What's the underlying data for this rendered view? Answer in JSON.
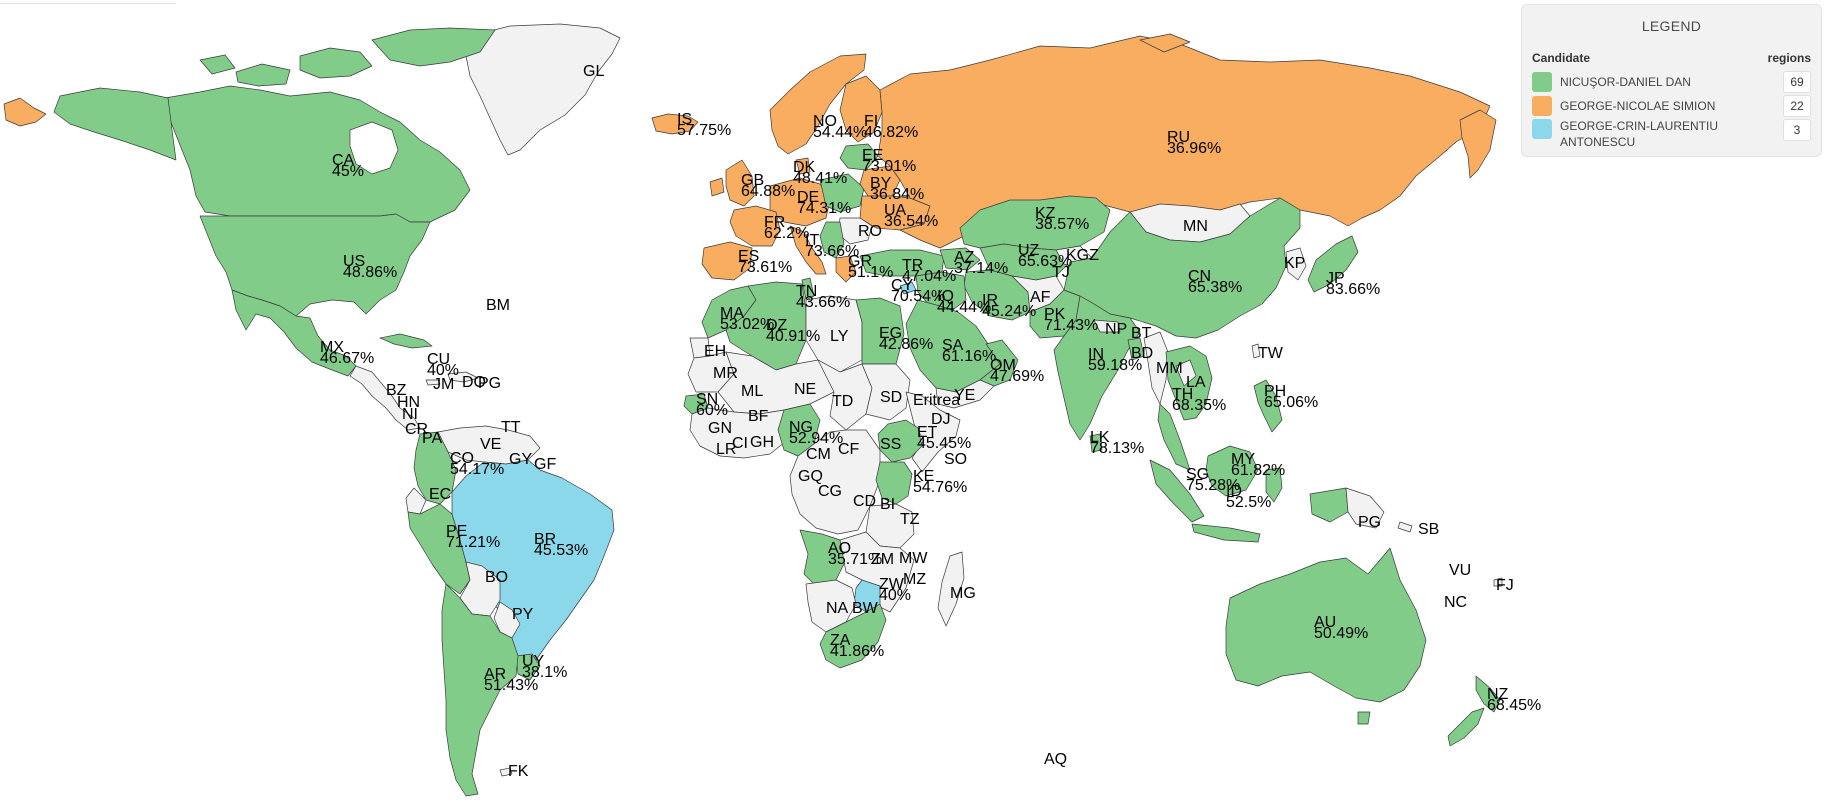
{
  "legend": {
    "title": "LEGEND",
    "col_candidate": "Candidate",
    "col_regions": "regions",
    "entries": [
      {
        "candidate": "NICUŞOR-DANIEL DAN",
        "regions": "69",
        "color": "#82cc8a"
      },
      {
        "candidate": "GEORGE-NICOLAE SIMION",
        "regions": "22",
        "color": "#f8ad60"
      },
      {
        "candidate": "GEORGE-CRIN-LAURENTIU\nANTONESCU",
        "regions": "3",
        "color": "#8ad8ea"
      }
    ]
  },
  "colors": {
    "none": "#f2f2f2",
    "border": "#3a3a3a",
    "text": "#222222"
  },
  "labels": {
    "GL": {
      "code": "GL"
    },
    "IS": {
      "code": "IS",
      "pct": "57.75%"
    },
    "CA": {
      "code": "CA",
      "pct": "45%"
    },
    "US": {
      "code": "US",
      "pct": "48.86%"
    },
    "MX": {
      "code": "MX",
      "pct": "46.67%"
    },
    "BM": {
      "code": "BM"
    },
    "CU": {
      "code": "CU",
      "pct": "40%"
    },
    "BZ": {
      "code": "BZ"
    },
    "JM": {
      "code": "JM"
    },
    "DO": {
      "code": "DO"
    },
    "PG_pr": {
      "code": "PG"
    },
    "HN": {
      "code": "HN"
    },
    "NI": {
      "code": "NI"
    },
    "CR": {
      "code": "CR"
    },
    "PA": {
      "code": "PA"
    },
    "TT": {
      "code": "TT"
    },
    "VE": {
      "code": "VE"
    },
    "GY": {
      "code": "GY"
    },
    "GF": {
      "code": "GF"
    },
    "CO": {
      "code": "CO",
      "pct": "54.17%"
    },
    "EC": {
      "code": "EC"
    },
    "PE": {
      "code": "PE",
      "pct": "71.21%"
    },
    "BR": {
      "code": "BR",
      "pct": "45.53%"
    },
    "BO": {
      "code": "BO"
    },
    "PY": {
      "code": "PY"
    },
    "UY": {
      "code": "UY",
      "pct": "38.1%"
    },
    "AR": {
      "code": "AR",
      "pct": "51.43%"
    },
    "FK": {
      "code": "FK"
    },
    "NO": {
      "code": "NO",
      "pct": "54.44%"
    },
    "FI": {
      "code": "FI",
      "pct": "46.82%"
    },
    "EE": {
      "code": "EE",
      "pct": "73.01%"
    },
    "DK": {
      "code": "DK",
      "pct": "48.41%"
    },
    "GB": {
      "code": "GB",
      "pct": "64.88%"
    },
    "DE": {
      "code": "DE",
      "pct": "74.31%"
    },
    "BY": {
      "code": "BY",
      "pct": "36.84%"
    },
    "UA": {
      "code": "UA",
      "pct": "36.54%"
    },
    "FR": {
      "code": "FR",
      "pct": "62.2%"
    },
    "IT": {
      "code": "IT",
      "pct": "73.66%"
    },
    "RO": {
      "code": "RO"
    },
    "ES": {
      "code": "ES",
      "pct": "73.61%"
    },
    "GR": {
      "code": "GR",
      "pct": "51.1%"
    },
    "TR": {
      "code": "TR",
      "pct": "47.04%"
    },
    "CY": {
      "code": "CY",
      "pct": "70.54%"
    },
    "AZ": {
      "code": "AZ",
      "pct": "37.14%"
    },
    "RU": {
      "code": "RU",
      "pct": "36.96%"
    },
    "KZ": {
      "code": "KZ",
      "pct": "38.57%"
    },
    "MN": {
      "code": "MN"
    },
    "UZ": {
      "code": "UZ",
      "pct": "65.63%"
    },
    "KGZ": {
      "code": "KGZ"
    },
    "TJ": {
      "code": "TJ"
    },
    "IQ": {
      "code": "IQ",
      "pct": "44.44%"
    },
    "IR": {
      "code": "IR",
      "pct": "45.24%"
    },
    "AF": {
      "code": "AF"
    },
    "PK": {
      "code": "PK",
      "pct": "71.43%"
    },
    "CN": {
      "code": "CN",
      "pct": "65.38%"
    },
    "KP": {
      "code": "KP"
    },
    "JP": {
      "code": "JP",
      "pct": "83.66%"
    },
    "NP": {
      "code": "NP"
    },
    "BT": {
      "code": "BT"
    },
    "BD": {
      "code": "BD"
    },
    "IN": {
      "code": "IN",
      "pct": "59.18%"
    },
    "TW": {
      "code": "TW"
    },
    "MM": {
      "code": "MM"
    },
    "LA": {
      "code": "LA"
    },
    "TH": {
      "code": "TH",
      "pct": "68.35%"
    },
    "PH": {
      "code": "PH",
      "pct": "65.06%"
    },
    "LK": {
      "code": "LK",
      "pct": "78.13%"
    },
    "SG": {
      "code": "SG",
      "pct": "75.28%"
    },
    "MY": {
      "code": "MY",
      "pct": "61.82%"
    },
    "ID": {
      "code": "ID",
      "pct": "52.5%"
    },
    "PG": {
      "code": "PG"
    },
    "SB": {
      "code": "SB"
    },
    "VU": {
      "code": "VU"
    },
    "FJ": {
      "code": "FJ"
    },
    "NC": {
      "code": "NC"
    },
    "AU": {
      "code": "AU",
      "pct": "50.49%"
    },
    "NZ": {
      "code": "NZ",
      "pct": "68.45%"
    },
    "AQ": {
      "code": "AQ"
    },
    "SA": {
      "code": "SA",
      "pct": "61.16%"
    },
    "OM": {
      "code": "OM",
      "pct": "47.69%"
    },
    "YE": {
      "code": "YE"
    },
    "MA": {
      "code": "MA",
      "pct": "53.02%"
    },
    "DZ": {
      "code": "DZ",
      "pct": "40.91%"
    },
    "TN": {
      "code": "TN",
      "pct": "43.66%"
    },
    "LY": {
      "code": "LY"
    },
    "EG": {
      "code": "EG",
      "pct": "42.86%"
    },
    "EH": {
      "code": "EH"
    },
    "MR": {
      "code": "MR"
    },
    "ML": {
      "code": "ML"
    },
    "NE": {
      "code": "NE"
    },
    "TD": {
      "code": "TD"
    },
    "SD": {
      "code": "SD"
    },
    "ER": {
      "code": "Eritrea"
    },
    "DJ": {
      "code": "DJ"
    },
    "SN": {
      "code": "SN",
      "pct": "60%"
    },
    "GN": {
      "code": "GN"
    },
    "BF": {
      "code": "BF"
    },
    "LR": {
      "code": "LR"
    },
    "CI": {
      "code": "CI"
    },
    "GH": {
      "code": "GH"
    },
    "NG": {
      "code": "NG",
      "pct": "52.94%"
    },
    "CM": {
      "code": "CM"
    },
    "CF": {
      "code": "CF"
    },
    "SS": {
      "code": "SS"
    },
    "ET": {
      "code": "ET",
      "pct": "45.45%"
    },
    "SO": {
      "code": "SO"
    },
    "GQ": {
      "code": "GQ"
    },
    "CG": {
      "code": "CG"
    },
    "CD": {
      "code": "CD"
    },
    "BI": {
      "code": "BI"
    },
    "KE": {
      "code": "KE",
      "pct": "54.76%"
    },
    "TZ": {
      "code": "TZ"
    },
    "AO": {
      "code": "AO",
      "pct": "35.71%"
    },
    "ZM": {
      "code": "ZM"
    },
    "MW": {
      "code": "MW"
    },
    "MZ": {
      "code": "MZ"
    },
    "ZW": {
      "code": "ZW",
      "pct": "40%"
    },
    "MG": {
      "code": "MG"
    },
    "NA": {
      "code": "NA"
    },
    "BW": {
      "code": "BW"
    },
    "ZA": {
      "code": "ZA",
      "pct": "41.86%"
    }
  }
}
